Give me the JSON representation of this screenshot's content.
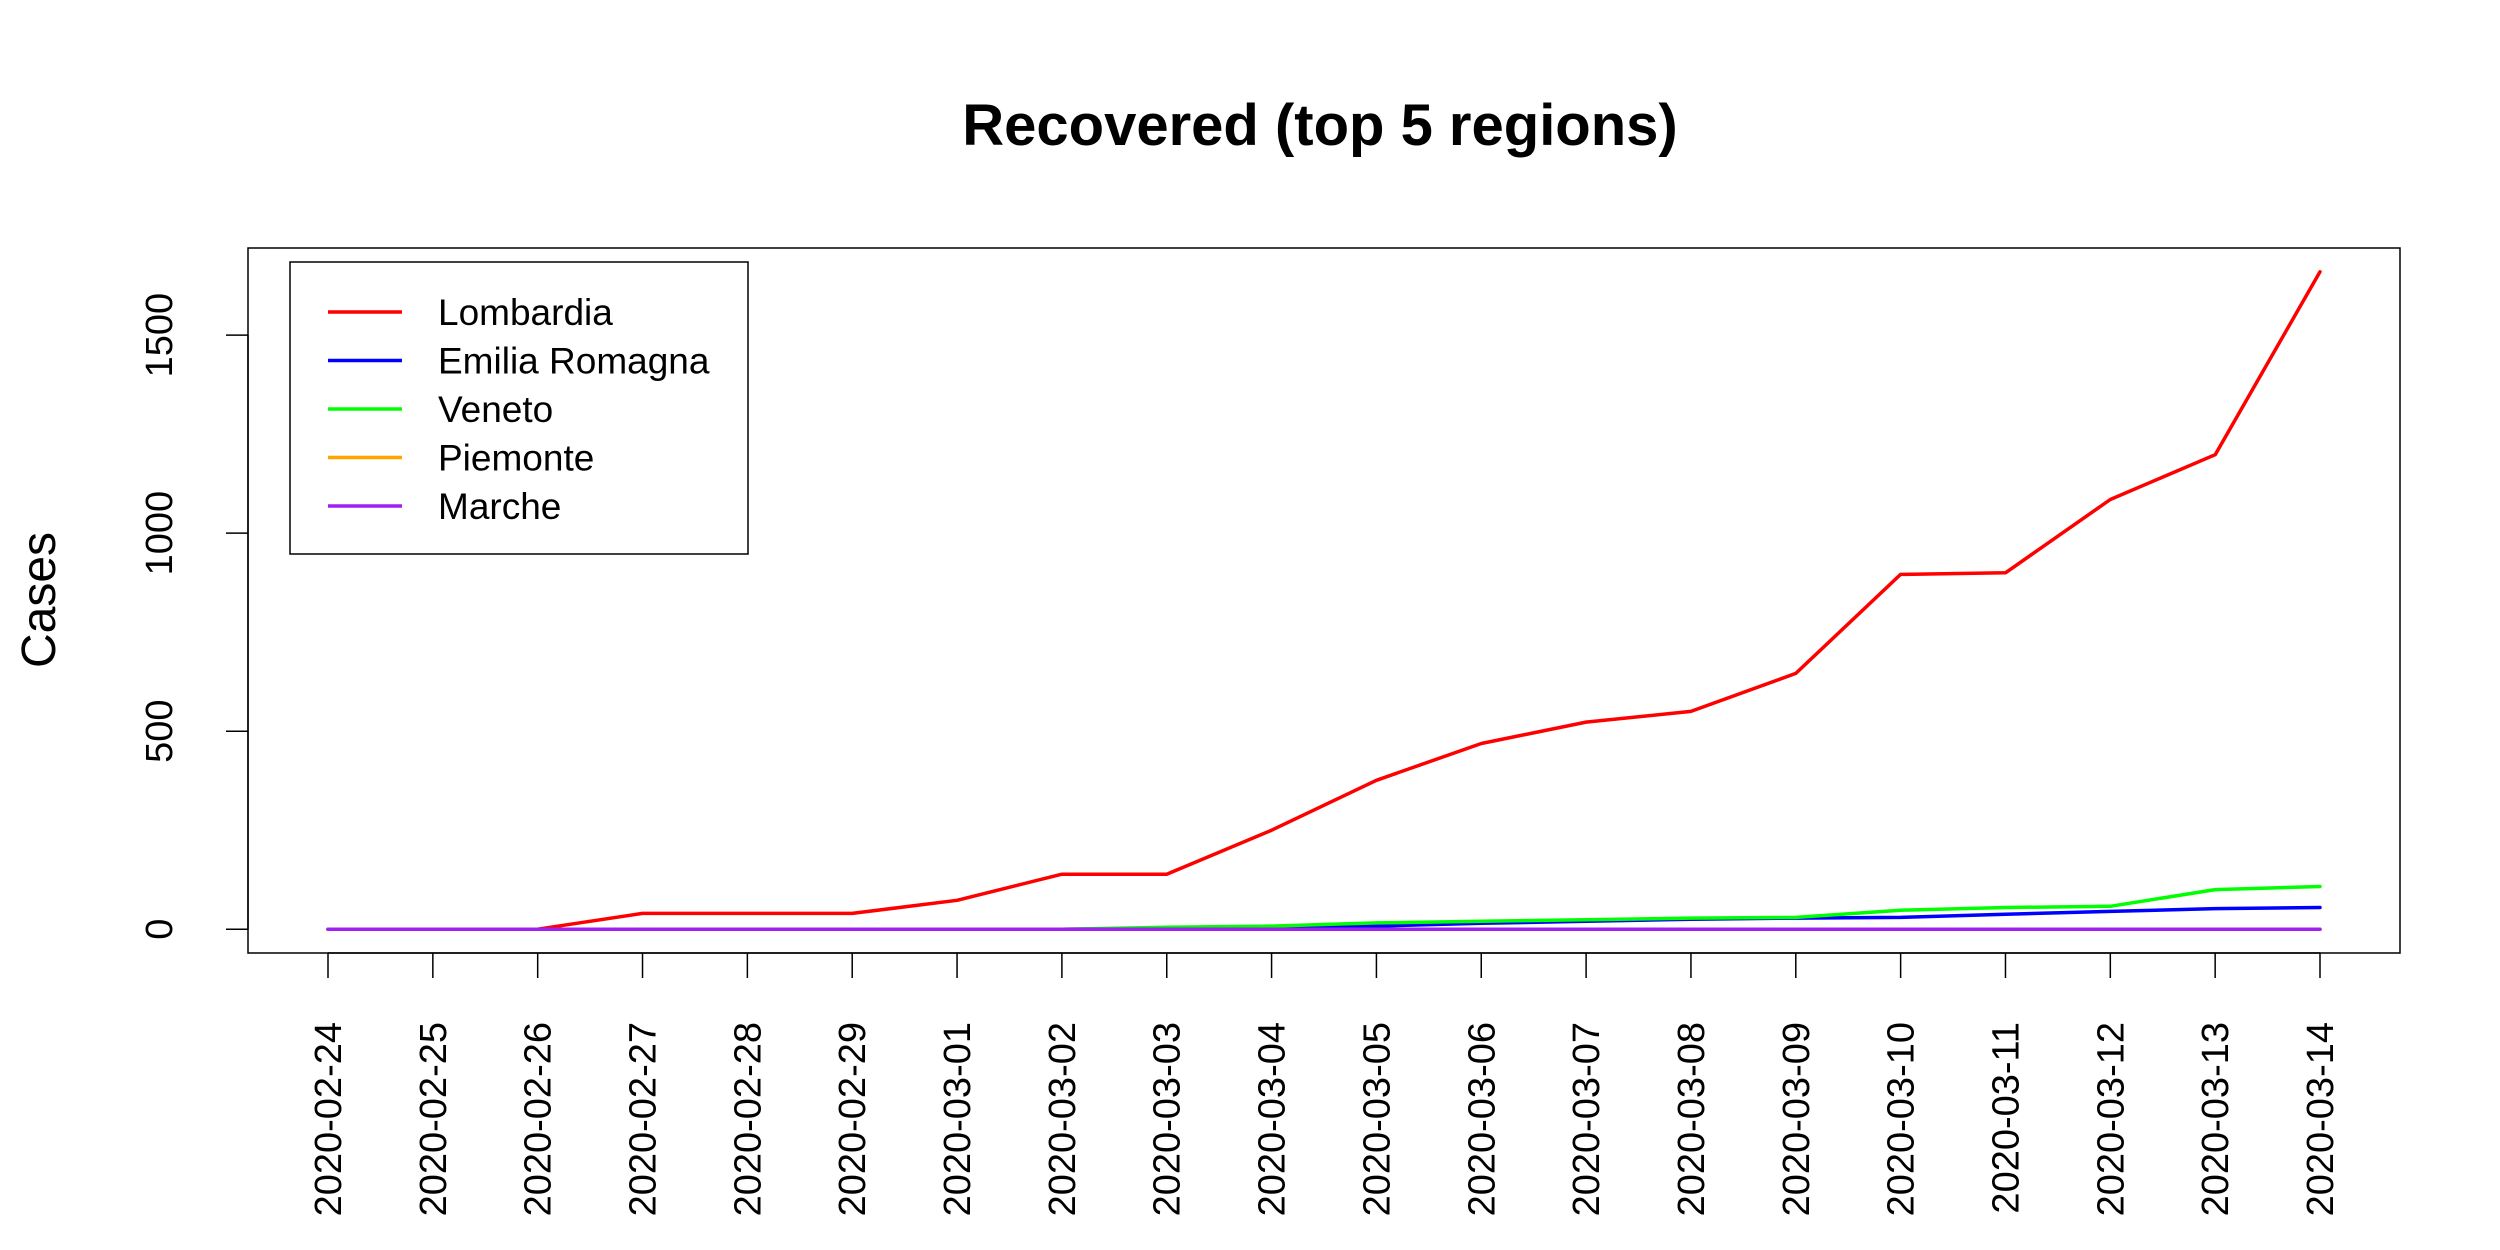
{
  "chart_data": {
    "type": "line",
    "title": "Recovered (top 5 regions)",
    "xlabel": "",
    "ylabel": "Cases",
    "x": [
      "2020-02-24",
      "2020-02-25",
      "2020-02-26",
      "2020-02-27",
      "2020-02-28",
      "2020-02-29",
      "2020-03-01",
      "2020-03-02",
      "2020-03-03",
      "2020-03-04",
      "2020-03-05",
      "2020-03-06",
      "2020-03-07",
      "2020-03-08",
      "2020-03-09",
      "2020-03-10",
      "2020-03-11",
      "2020-03-12",
      "2020-03-13",
      "2020-03-14"
    ],
    "ylim": [
      -60,
      1720
    ],
    "yticks": [
      0,
      500,
      1000,
      1500
    ],
    "ytick_labels": [
      "0",
      "500",
      "1000",
      "1500"
    ],
    "grid": false,
    "legend_position": "top-left",
    "series": [
      {
        "name": "Lombardia",
        "color": "#ff0000",
        "values": [
          0,
          0,
          0,
          40,
          40,
          40,
          73,
          139,
          139,
          250,
          376,
          469,
          523,
          550,
          646,
          896,
          900,
          1085,
          1198,
          1660
        ]
      },
      {
        "name": "Emilia Romagna",
        "color": "#0000ff",
        "values": [
          0,
          0,
          0,
          0,
          0,
          0,
          0,
          0,
          2,
          4,
          8,
          15,
          20,
          25,
          28,
          30,
          38,
          45,
          52,
          55
        ]
      },
      {
        "name": "Veneto",
        "color": "#00ff00",
        "values": [
          0,
          0,
          0,
          0,
          0,
          0,
          0,
          0,
          5,
          8,
          16,
          20,
          24,
          28,
          30,
          48,
          55,
          58,
          100,
          108
        ]
      },
      {
        "name": "Piemonte",
        "color": "#ffa500",
        "values": [
          0,
          0,
          0,
          0,
          0,
          0,
          0,
          0,
          0,
          0,
          0,
          0,
          0,
          0,
          0,
          0,
          0,
          0,
          0,
          0
        ]
      },
      {
        "name": "Marche",
        "color": "#a020f0",
        "values": [
          0,
          0,
          0,
          0,
          0,
          0,
          0,
          0,
          0,
          0,
          0,
          0,
          0,
          0,
          0,
          0,
          0,
          0,
          0,
          0
        ]
      }
    ]
  }
}
